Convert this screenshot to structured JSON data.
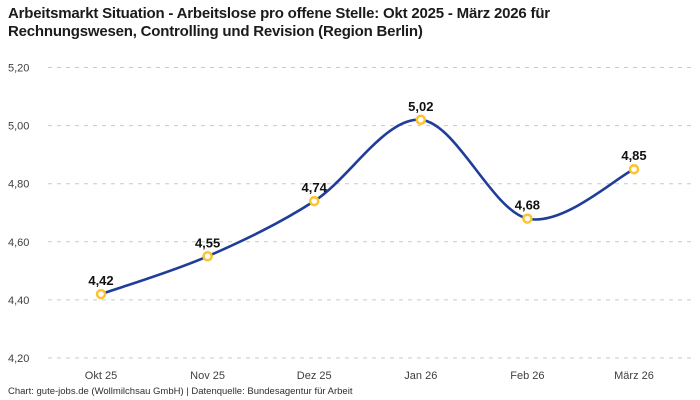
{
  "chart_data": {
    "type": "line",
    "title": "Arbeitsmarkt Situation - Arbeitslose pro offene Stelle: Okt 2025 - März 2026 für Rechnungswesen, Controlling und Revision (Region Berlin)",
    "source_note": "Chart: gute-jobs.de (Wollmilchsau GmbH) | Datenquelle: Bundesagentur für Arbeit",
    "categories": [
      "Okt 25",
      "Nov 25",
      "Dez 25",
      "Jan 26",
      "Feb 26",
      "März 26"
    ],
    "values": [
      4.42,
      4.55,
      4.74,
      5.02,
      4.68,
      4.85
    ],
    "value_labels": [
      "4,42",
      "4,55",
      "4,74",
      "5,02",
      "4,68",
      "4,85"
    ],
    "y_ticks": [
      {
        "value": 4.2,
        "label": "4,20"
      },
      {
        "value": 4.4,
        "label": "4,40"
      },
      {
        "value": 4.6,
        "label": "4,60"
      },
      {
        "value": 4.8,
        "label": "4,80"
      },
      {
        "value": 5.0,
        "label": "5,00"
      },
      {
        "value": 5.2,
        "label": "5,20"
      }
    ],
    "ylim": [
      4.2,
      5.2
    ],
    "xlabel": "",
    "ylabel": "",
    "grid": "horizontal-dashed",
    "legend": "none",
    "marker_style": "open-circle",
    "colors": {
      "line": "#1F3D99",
      "marker_stroke": "#FDC32C",
      "marker_fill": "#FFFFFF",
      "grid": "#C9C9C9",
      "title_text": "#1B1B1B",
      "axis_text": "#3F3F3F",
      "value_text": "#111111"
    }
  }
}
